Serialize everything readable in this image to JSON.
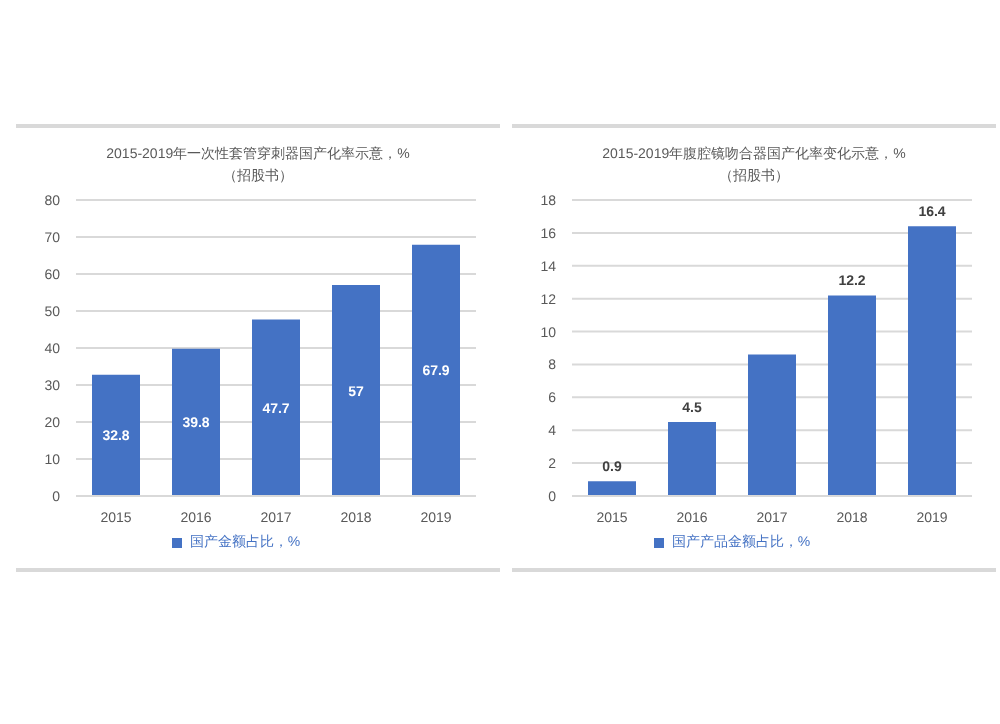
{
  "chart_data": [
    {
      "type": "bar",
      "title": "2015-2019年一次性套管穿刺器国产化率示意，%",
      "subtitle": "（招股书）",
      "categories": [
        "2015",
        "2016",
        "2017",
        "2018",
        "2019"
      ],
      "series": [
        {
          "name": "国产金额占比，%",
          "color": "#4472c4",
          "values": [
            32.8,
            39.8,
            47.7,
            57,
            67.9
          ]
        }
      ],
      "value_labels": [
        "32.8",
        "39.8",
        "47.7",
        "57",
        "67.9"
      ],
      "ylim": [
        0,
        80
      ],
      "yticks": [
        0,
        10,
        20,
        30,
        40,
        50,
        60,
        70,
        80
      ],
      "grid": "y",
      "legend": "bottom"
    },
    {
      "type": "bar",
      "title": "2015-2019年腹腔镜吻合器国产化率变化示意，%",
      "subtitle": "（招股书）",
      "categories": [
        "2015",
        "2016",
        "2017",
        "2018",
        "2019"
      ],
      "series": [
        {
          "name": "国产产品金额占比，%",
          "color": "#4472c4",
          "values": [
            0.9,
            4.5,
            8.6,
            12.2,
            16.4
          ]
        }
      ],
      "value_labels": [
        "0.9",
        "4.5",
        null,
        "12.2",
        "16.4"
      ],
      "ylim": [
        0,
        18
      ],
      "yticks": [
        0,
        2,
        4,
        6,
        8,
        10,
        12,
        14,
        16,
        18
      ],
      "grid": "y",
      "legend": "bottom"
    }
  ]
}
